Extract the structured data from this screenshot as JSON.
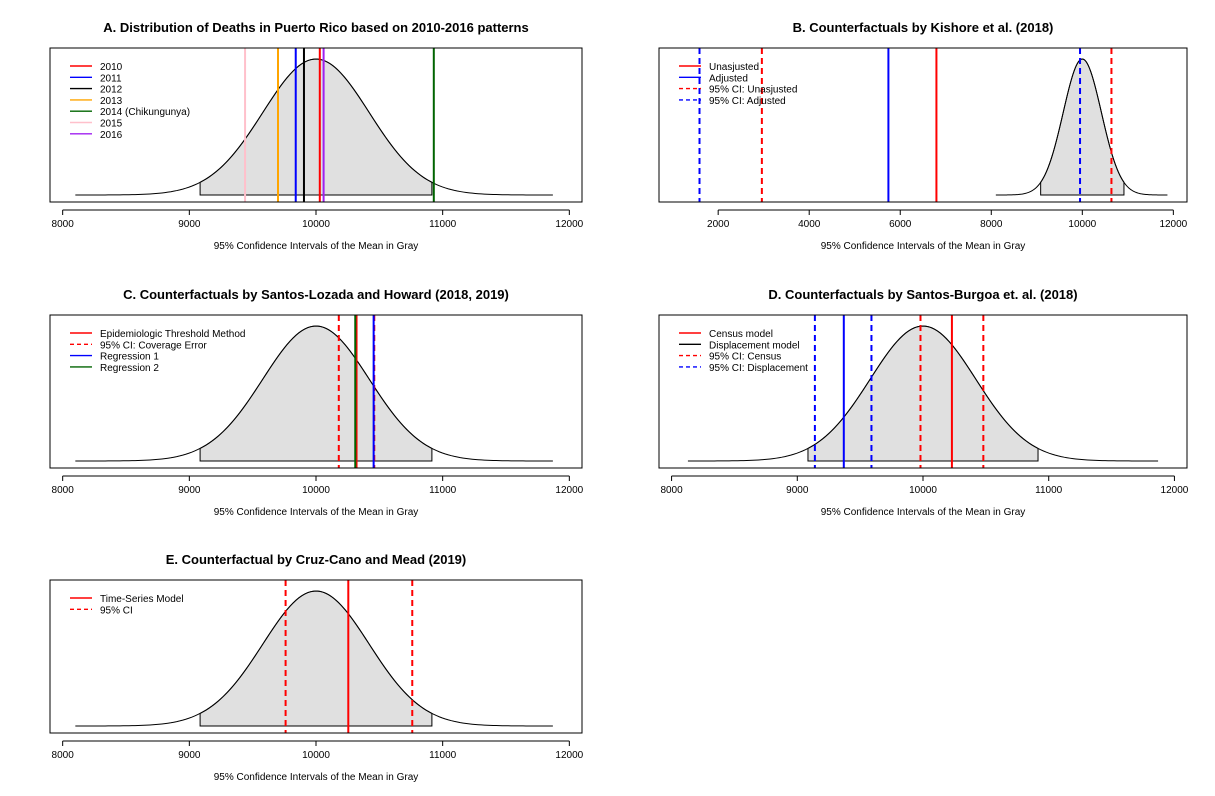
{
  "chart_data": [
    {
      "type": "area",
      "title": "A. Distribution of Deaths in Puerto Rico based on 2010-2016 patterns",
      "xlabel": "95% Confidence Intervals of the Mean in Gray",
      "ylabel": "",
      "xlim": [
        7900,
        12100
      ],
      "xticks": [
        8000,
        9000,
        10000,
        11000,
        12000
      ],
      "distribution": {
        "mean": 10000,
        "sd": 420,
        "range": [
          8100,
          11870
        ],
        "ci_shaded": [
          9085,
          10915
        ],
        "fill": "#e0e0e0"
      },
      "legend_position": "top-left",
      "lines": [
        {
          "label": "2010",
          "x": 10030,
          "color": "#ff0000",
          "dash": false
        },
        {
          "label": "2011",
          "x": 9840,
          "color": "#0000ff",
          "dash": false
        },
        {
          "label": "2012",
          "x": 9905,
          "color": "#000000",
          "dash": false
        },
        {
          "label": "2013",
          "x": 9700,
          "color": "#ffa500",
          "dash": false
        },
        {
          "label": "2014 (Chikungunya)",
          "x": 10930,
          "color": "#006400",
          "dash": false
        },
        {
          "label": "2015",
          "x": 9440,
          "color": "#ffc0cb",
          "dash": false
        },
        {
          "label": "2016",
          "x": 10060,
          "color": "#a020f0",
          "dash": false
        }
      ]
    },
    {
      "type": "area",
      "title": "B. Counterfactuals by Kishore et al. (2018)",
      "xlabel": "95% Confidence Intervals of the Mean in Gray",
      "ylabel": "",
      "xlim": [
        700,
        12300
      ],
      "xticks": [
        2000,
        4000,
        6000,
        8000,
        10000,
        12000
      ],
      "distribution": {
        "mean": 10000,
        "sd": 420,
        "range": [
          8100,
          11870
        ],
        "ci_shaded": [
          9085,
          10915
        ],
        "fill": "#e0e0e0"
      },
      "legend_position": "top-left",
      "legend": [
        {
          "label": "Unasjusted",
          "color": "#ff0000",
          "dash": false
        },
        {
          "label": "Adjusted",
          "color": "#0000ff",
          "dash": false
        },
        {
          "label": "95% CI: Unasjusted",
          "color": "#ff0000",
          "dash": true
        },
        {
          "label": "95% CI: Adjusted",
          "color": "#0000ff",
          "dash": true
        }
      ],
      "lines": [
        {
          "x": 6795,
          "color": "#ff0000",
          "dash": false
        },
        {
          "x": 5740,
          "color": "#0000ff",
          "dash": false
        },
        {
          "x": 2960,
          "color": "#ff0000",
          "dash": true
        },
        {
          "x": 10640,
          "color": "#ff0000",
          "dash": true
        },
        {
          "x": 1590,
          "color": "#0000ff",
          "dash": true
        },
        {
          "x": 9950,
          "color": "#0000ff",
          "dash": true
        }
      ]
    },
    {
      "type": "area",
      "title": "C. Counterfactuals by Santos-Lozada and Howard (2018, 2019)",
      "xlabel": "95% Confidence Intervals of the Mean in Gray",
      "ylabel": "",
      "xlim": [
        7900,
        12100
      ],
      "xticks": [
        8000,
        9000,
        10000,
        11000,
        12000
      ],
      "distribution": {
        "mean": 10000,
        "sd": 420,
        "range": [
          8100,
          11870
        ],
        "ci_shaded": [
          9085,
          10915
        ],
        "fill": "#e0e0e0"
      },
      "legend_position": "top-left",
      "legend": [
        {
          "label": "Epidemiologic Threshold Method",
          "color": "#ff0000",
          "dash": false
        },
        {
          "label": "95% CI: Coverage Error",
          "color": "#ff0000",
          "dash": true
        },
        {
          "label": "Regression 1",
          "color": "#0000ff",
          "dash": false
        },
        {
          "label": "Regression 2",
          "color": "#006400",
          "dash": false
        }
      ],
      "lines": [
        {
          "x": 10180,
          "color": "#ff0000",
          "dash": true
        },
        {
          "x": 10460,
          "color": "#ff0000",
          "dash": true
        },
        {
          "x": 10320,
          "color": "#ff0000",
          "dash": false
        },
        {
          "x": 10455,
          "color": "#0000ff",
          "dash": false
        },
        {
          "x": 10310,
          "color": "#006400",
          "dash": false
        }
      ]
    },
    {
      "type": "area",
      "title": "D. Counterfactuals by Santos-Burgoa et. al. (2018)",
      "xlabel": "95% Confidence Intervals of the Mean in Gray",
      "ylabel": "",
      "xlim": [
        7900,
        12100
      ],
      "xticks": [
        8000,
        9000,
        10000,
        11000,
        12000
      ],
      "distribution": {
        "mean": 10000,
        "sd": 420,
        "range": [
          8130,
          11870
        ],
        "ci_shaded": [
          9085,
          10915
        ],
        "fill": "#e0e0e0"
      },
      "legend_position": "top-left",
      "legend": [
        {
          "label": "Census model",
          "color": "#ff0000",
          "dash": false
        },
        {
          "label": "Displacement model",
          "color": "#000000",
          "dash": false
        },
        {
          "label": "95% CI: Census",
          "color": "#ff0000",
          "dash": true
        },
        {
          "label": "95% CI: Displacement",
          "color": "#0000ff",
          "dash": true
        }
      ],
      "lines": [
        {
          "x": 10230,
          "color": "#ff0000",
          "dash": false
        },
        {
          "x": 9370,
          "color": "#0000ff",
          "dash": false
        },
        {
          "x": 9980,
          "color": "#ff0000",
          "dash": true
        },
        {
          "x": 10480,
          "color": "#ff0000",
          "dash": true
        },
        {
          "x": 9140,
          "color": "#0000ff",
          "dash": true
        },
        {
          "x": 9590,
          "color": "#0000ff",
          "dash": true
        }
      ]
    },
    {
      "type": "area",
      "title": "E. Counterfactual by Cruz-Cano and Mead (2019)",
      "xlabel": "95% Confidence Intervals of the Mean in Gray",
      "ylabel": "",
      "xlim": [
        7900,
        12100
      ],
      "xticks": [
        8000,
        9000,
        10000,
        11000,
        12000
      ],
      "distribution": {
        "mean": 10000,
        "sd": 420,
        "range": [
          8100,
          11870
        ],
        "ci_shaded": [
          9085,
          10915
        ],
        "fill": "#e0e0e0"
      },
      "legend_position": "top-left",
      "legend": [
        {
          "label": "Time-Series Model",
          "color": "#ff0000",
          "dash": false
        },
        {
          "label": "95% CI",
          "color": "#ff0000",
          "dash": true
        }
      ],
      "lines": [
        {
          "x": 10255,
          "color": "#ff0000",
          "dash": false
        },
        {
          "x": 9760,
          "color": "#ff0000",
          "dash": true
        },
        {
          "x": 10760,
          "color": "#ff0000",
          "dash": true
        }
      ]
    }
  ]
}
